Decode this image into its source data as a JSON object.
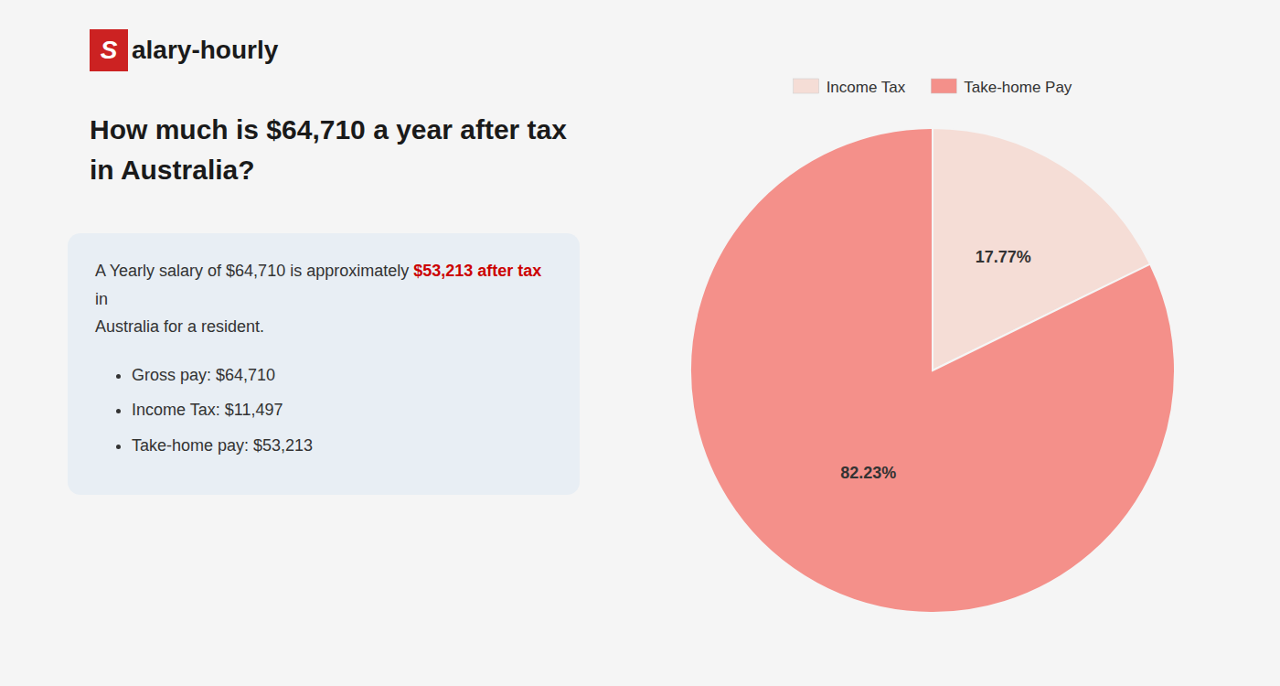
{
  "chart_data": {
    "type": "pie",
    "title": "How much is $64,710 a year after tax in Australia?",
    "categories": [
      "Income Tax",
      "Take-home Pay"
    ],
    "values": [
      17.77,
      82.23
    ],
    "value_labels": [
      "17.77%",
      "82.23%"
    ],
    "colors": [
      "#f5ddd6",
      "#f4908a"
    ],
    "data_labels": true,
    "legend": "top",
    "annotations": [
      {
        "text": "S",
        "color": "#cc2222"
      },
      {
        "text": "alary-hourly"
      },
      {
        "text": "A Yearly salary of $64,710 is approximately "
      },
      {
        "text": "$53,213 after tax",
        "color": "#cc0000"
      },
      {
        "text": " in"
      },
      {
        "text": "Australia for a resident."
      },
      {
        "text": "Gross pay: $64,710"
      },
      {
        "text": "Income Tax: $11,497"
      },
      {
        "text": "Take-home pay: $53,213"
      }
    ]
  }
}
